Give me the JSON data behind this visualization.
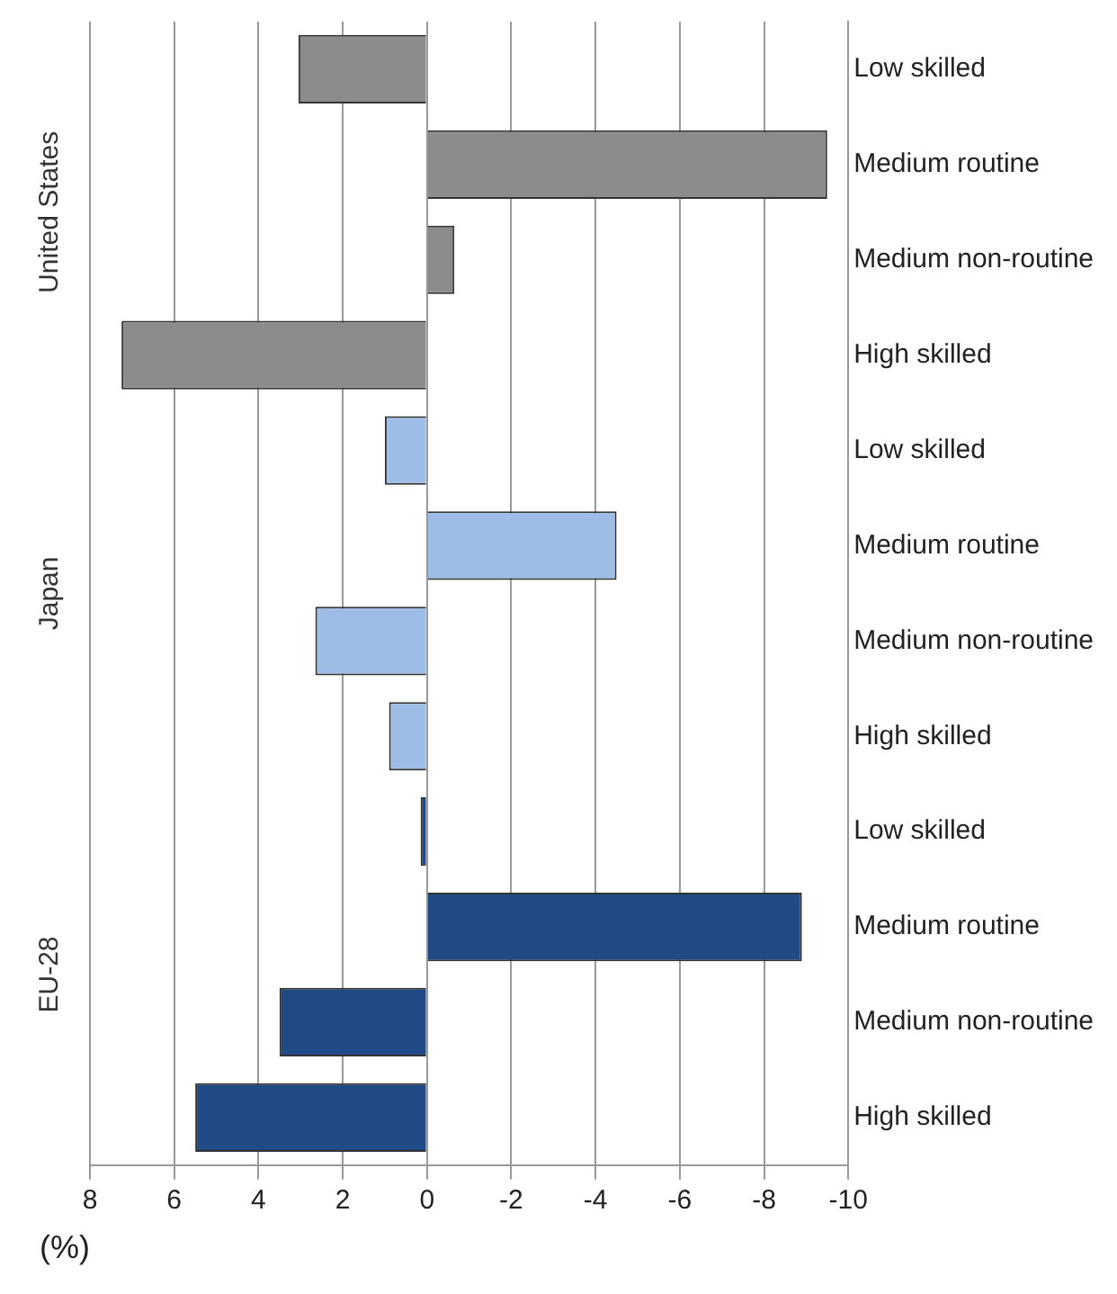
{
  "chart_data": {
    "type": "bar",
    "orientation": "horizontal",
    "categories": [
      "Low skilled",
      "Medium routine",
      "Medium non-routine",
      "High skilled",
      "Low skilled",
      "Medium routine",
      "Medium non-routine",
      "High skilled",
      "Low skilled",
      "Medium routine",
      "Medium non-routine",
      "High skilled"
    ],
    "values": [
      3.05,
      -9.5,
      -0.65,
      7.25,
      1.0,
      -4.5,
      2.65,
      0.9,
      0.15,
      -8.9,
      3.5,
      5.5
    ],
    "colors": [
      "#8c8c8c",
      "#8c8c8c",
      "#8c8c8c",
      "#8c8c8c",
      "#9dbde6",
      "#9dbde6",
      "#9dbde6",
      "#9dbde6",
      "#1f4a85",
      "#1f4a85",
      "#1f4a85",
      "#1f4a85"
    ],
    "xlim": [
      8,
      -10
    ],
    "xticks": [
      8,
      6,
      4,
      2,
      0,
      -2,
      -4,
      -6,
      -8,
      -10
    ],
    "xlabel": "(%)",
    "annotations": [
      "United States",
      "Japan",
      "EU-28"
    ],
    "grid": "x",
    "legend": false
  }
}
